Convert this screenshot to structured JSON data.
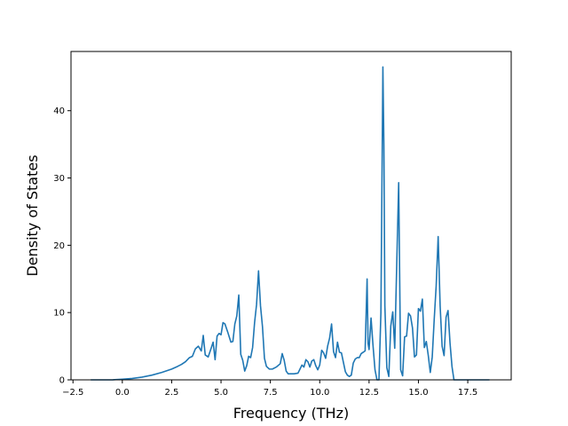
{
  "chart_data": {
    "type": "line",
    "title": "",
    "xlabel": "Frequency (THz)",
    "ylabel": "Density of States",
    "xlim": [
      -2.6,
      19.7
    ],
    "ylim": [
      0,
      48.8
    ],
    "xticks": [
      -2.5,
      0.0,
      2.5,
      5.0,
      7.5,
      10.0,
      12.5,
      15.0,
      17.5
    ],
    "xtick_labels": [
      "−2.5",
      "0.0",
      "2.5",
      "5.0",
      "7.5",
      "10.0",
      "12.5",
      "15.0",
      "17.5"
    ],
    "yticks": [
      0,
      10,
      20,
      30,
      40
    ],
    "ytick_labels": [
      "0",
      "10",
      "20",
      "30",
      "40"
    ],
    "grid": false,
    "legend": "none",
    "line_color": "#1f77b4",
    "series": [
      {
        "x": [
          -1.6,
          -0.5,
          0.0,
          0.5,
          1.0,
          1.5,
          2.0,
          2.5,
          2.8,
          3.0,
          3.2,
          3.4,
          3.55,
          3.7,
          3.85,
          4.0,
          4.1,
          4.2,
          4.35,
          4.5,
          4.6,
          4.7,
          4.8,
          4.9,
          5.0,
          5.1,
          5.2,
          5.35,
          5.5,
          5.6,
          5.7,
          5.8,
          5.9,
          6.0,
          6.1,
          6.2,
          6.3,
          6.4,
          6.5,
          6.6,
          6.7,
          6.8,
          6.9,
          7.0,
          7.1,
          7.2,
          7.3,
          7.45,
          7.6,
          7.8,
          8.0,
          8.1,
          8.2,
          8.3,
          8.4,
          8.5,
          8.7,
          8.9,
          9.0,
          9.1,
          9.2,
          9.3,
          9.4,
          9.5,
          9.6,
          9.7,
          9.8,
          9.9,
          10.0,
          10.1,
          10.2,
          10.3,
          10.4,
          10.5,
          10.6,
          10.7,
          10.8,
          10.9,
          11.0,
          11.1,
          11.2,
          11.3,
          11.4,
          11.5,
          11.6,
          11.7,
          11.8,
          11.9,
          12.0,
          12.1,
          12.2,
          12.3,
          12.4,
          12.45,
          12.5,
          12.6,
          12.7,
          12.8,
          12.9,
          13.0,
          13.1,
          13.2,
          13.25,
          13.3,
          13.4,
          13.5,
          13.6,
          13.7,
          13.8,
          13.9,
          14.0,
          14.1,
          14.2,
          14.3,
          14.4,
          14.5,
          14.6,
          14.7,
          14.8,
          14.9,
          15.0,
          15.1,
          15.2,
          15.3,
          15.4,
          15.5,
          15.6,
          15.7,
          15.8,
          15.9,
          16.0,
          16.1,
          16.2,
          16.3,
          16.4,
          16.5,
          16.6,
          16.7,
          16.8,
          16.9,
          17.0,
          17.1,
          18.0,
          18.6
        ],
        "y": [
          0,
          0,
          0.1,
          0.2,
          0.4,
          0.7,
          1.1,
          1.6,
          2.0,
          2.3,
          2.7,
          3.3,
          3.5,
          4.6,
          5.0,
          4.3,
          6.6,
          3.7,
          3.4,
          4.7,
          5.6,
          3.0,
          6.5,
          6.9,
          6.7,
          8.5,
          8.3,
          7.0,
          5.6,
          5.7,
          8.3,
          9.5,
          12.6,
          3.8,
          2.9,
          1.3,
          2.1,
          3.5,
          3.3,
          4.8,
          8.5,
          11.2,
          16.2,
          11.0,
          7.9,
          3.2,
          2.0,
          1.6,
          1.6,
          1.9,
          2.4,
          3.9,
          2.9,
          1.3,
          0.9,
          0.9,
          0.9,
          1.0,
          1.6,
          2.2,
          1.9,
          3.0,
          2.7,
          1.9,
          2.8,
          3.0,
          2.1,
          1.5,
          2.2,
          4.4,
          4.0,
          3.2,
          5.0,
          6.2,
          8.3,
          4.2,
          3.3,
          5.6,
          4.1,
          4.0,
          2.6,
          1.2,
          0.7,
          0.5,
          0.7,
          2.5,
          3.1,
          3.3,
          3.3,
          3.9,
          4.1,
          4.3,
          15.0,
          5.4,
          4.5,
          9.2,
          5.1,
          1.5,
          0.0,
          0.0,
          10.0,
          46.5,
          35.0,
          11.0,
          1.8,
          0.5,
          8.0,
          10.1,
          4.7,
          17.0,
          29.3,
          1.5,
          0.6,
          6.4,
          6.5,
          9.9,
          9.5,
          7.7,
          3.4,
          3.7,
          10.6,
          10.2,
          12.0,
          4.8,
          5.7,
          3.6,
          1.1,
          3.4,
          9.0,
          14.0,
          21.3,
          11.0,
          5.0,
          3.6,
          9.3,
          10.3,
          5.5,
          2.0,
          0.0,
          0.0,
          0.0,
          0.0,
          0.0,
          0.0
        ]
      }
    ]
  }
}
